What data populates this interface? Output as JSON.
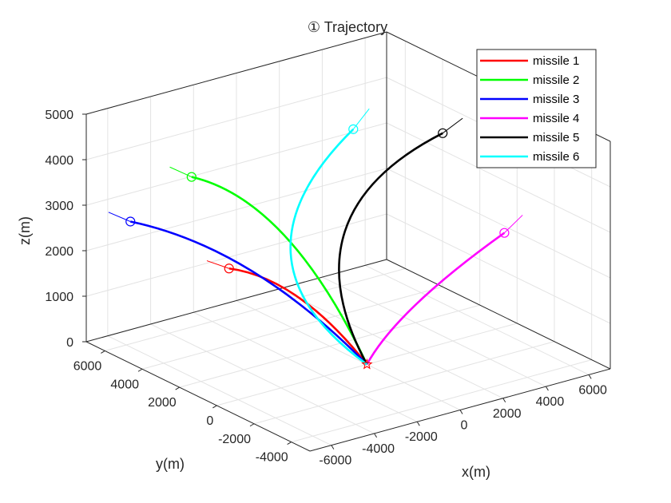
{
  "chart_data": {
    "type": "line3d",
    "title": "① Trajectory",
    "xlabel": "x(m)",
    "ylabel": "y(m)",
    "zlabel": "z(m)",
    "xlim": [
      -7000,
      7000
    ],
    "ylim": [
      -5000,
      7000
    ],
    "zlim": [
      0,
      5000
    ],
    "xticks": [
      -6000,
      -4000,
      -2000,
      0,
      2000,
      4000,
      6000
    ],
    "yticks": [
      -4000,
      -2000,
      0,
      2000,
      4000,
      6000
    ],
    "zticks": [
      0,
      1000,
      2000,
      3000,
      4000,
      5000
    ],
    "xtick_labels": [
      "-6000",
      "-4000",
      "-2000",
      "0",
      "2000",
      "4000",
      "6000"
    ],
    "ytick_labels": [
      "-4000",
      "-2000",
      "0",
      "2000",
      "4000",
      "6000"
    ],
    "ztick_labels": [
      "0",
      "1000",
      "2000",
      "3000",
      "4000",
      "5000"
    ],
    "grid": true,
    "legend_position": "top-right",
    "target": {
      "name": "target",
      "marker": "star",
      "color": "#ff0000",
      "x": 0,
      "y": 0,
      "z": 0
    },
    "series": [
      {
        "name": "missile 1",
        "color": "#ff0000",
        "start": {
          "x": -3820,
          "y": 3000,
          "z": 2000
        },
        "waypoints": [
          [
            -3820,
            3000,
            2000
          ],
          [
            -1900,
            1500,
            1850
          ],
          [
            0,
            0,
            0
          ]
        ]
      },
      {
        "name": "missile 2",
        "color": "#00ff00",
        "start": {
          "x": -2960,
          "y": 6000,
          "z": 3300
        },
        "waypoints": [
          [
            -2960,
            6000,
            3300
          ],
          [
            -600,
            3500,
            3000
          ],
          [
            0,
            0,
            0
          ]
        ]
      },
      {
        "name": "missile 3",
        "color": "#0000ff",
        "start": {
          "x": -6680,
          "y": 5000,
          "z": 3000
        },
        "waypoints": [
          [
            -6680,
            5000,
            3000
          ],
          [
            -3500,
            2200,
            2600
          ],
          [
            0,
            0,
            0
          ]
        ]
      },
      {
        "name": "missile 4",
        "color": "#ff00ff",
        "start": {
          "x": 3800,
          "y": -3000,
          "z": 3000
        },
        "waypoints": [
          [
            3800,
            -3000,
            3000
          ],
          [
            600,
            -900,
            1300
          ],
          [
            0,
            0,
            0
          ]
        ]
      },
      {
        "name": "missile 5",
        "color": "#000000",
        "start": {
          "x": 5270,
          "y": 2000,
          "z": 4000
        },
        "waypoints": [
          [
            5270,
            2000,
            4000
          ],
          [
            -1550,
            2600,
            3000
          ],
          [
            0,
            0,
            0
          ]
        ]
      },
      {
        "name": "missile 6",
        "color": "#00ffff",
        "start": {
          "x": 2840,
          "y": 4000,
          "z": 4000
        },
        "waypoints": [
          [
            2840,
            4000,
            4000
          ],
          [
            -3750,
            3500,
            2100
          ],
          [
            0,
            0,
            0
          ]
        ]
      }
    ]
  }
}
